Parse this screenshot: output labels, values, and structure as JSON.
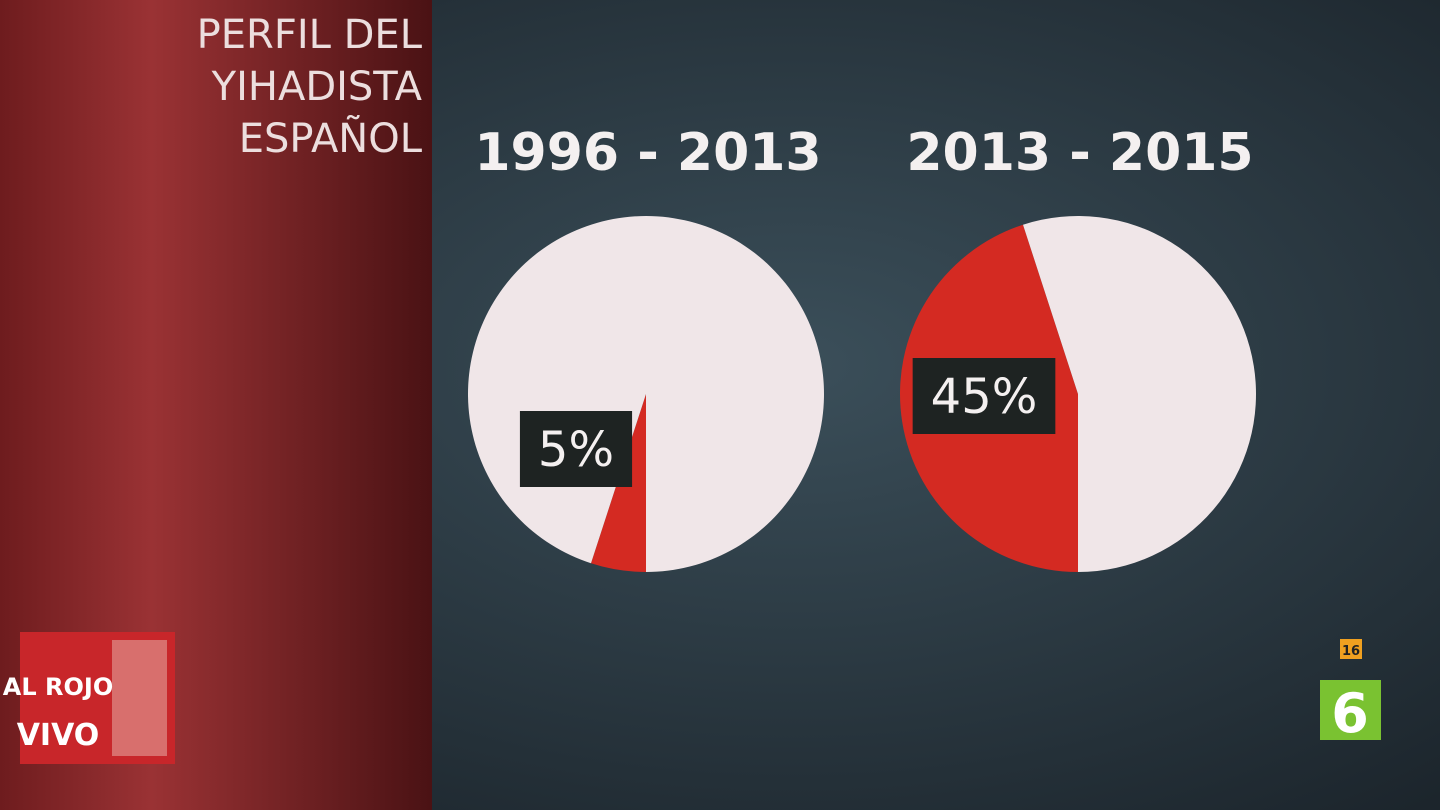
{
  "title": [
    "PERFIL DEL",
    "YIHADISTA",
    "ESPAÑOL"
  ],
  "show_logo": [
    "AL ROJO",
    "VIVO"
  ],
  "rating": "16",
  "channel": "6",
  "chart_data": [
    {
      "type": "pie",
      "title": "1996 - 2013",
      "values": [
        5,
        95
      ],
      "value_labels": [
        "5%",
        null
      ],
      "colors": [
        "#d42a22",
        "#f0e6e8"
      ]
    },
    {
      "type": "pie",
      "title": "2013 - 2015",
      "values": [
        45,
        55
      ],
      "value_labels": [
        "45%",
        null
      ],
      "colors": [
        "#d42a22",
        "#f0e6e8"
      ]
    }
  ]
}
